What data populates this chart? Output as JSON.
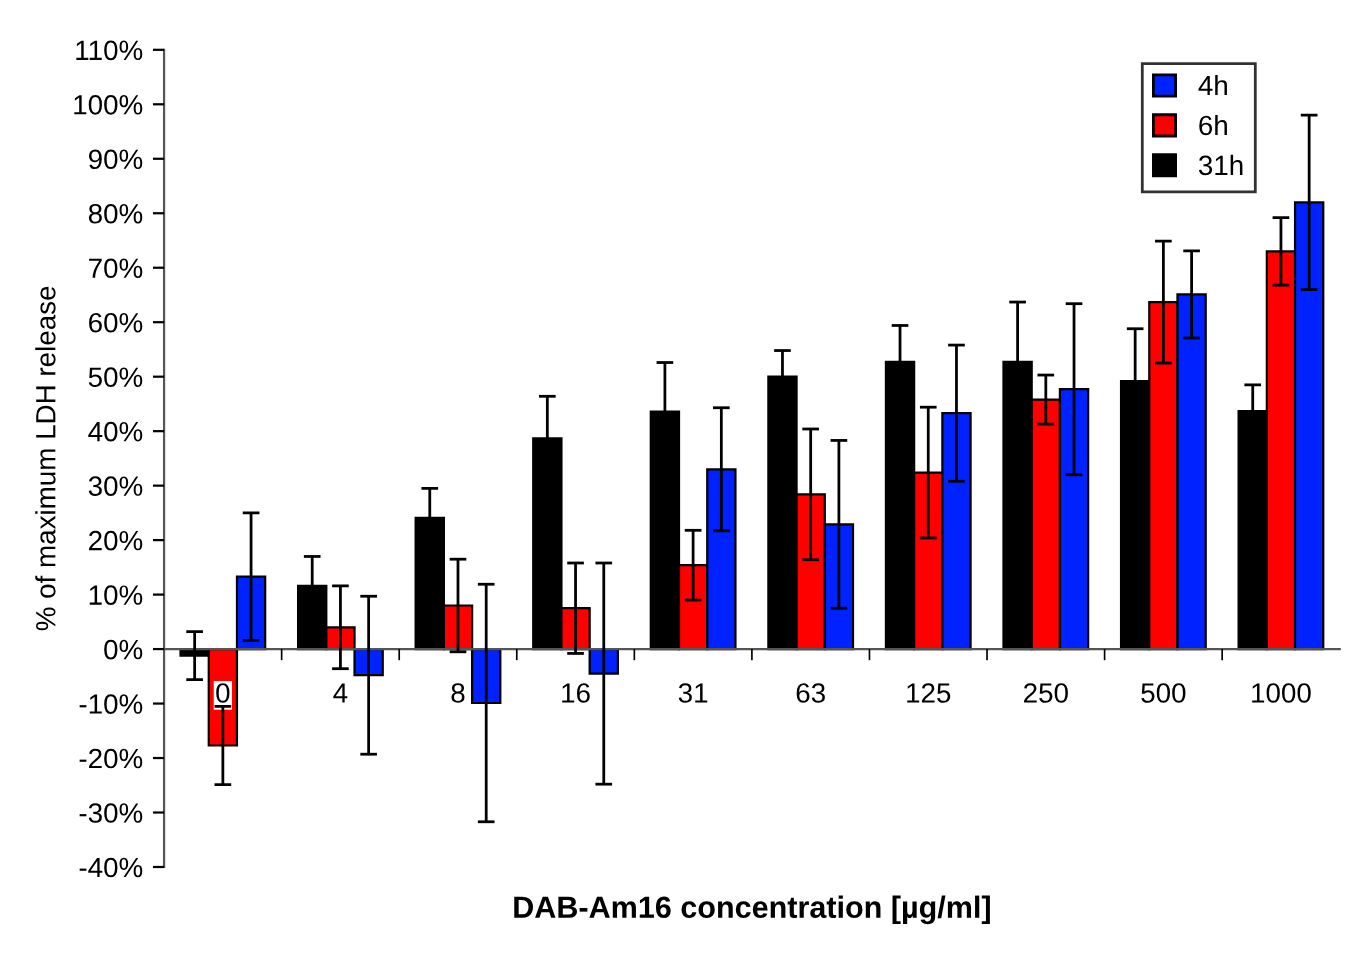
{
  "chart_data": {
    "type": "bar",
    "xlabel": "DAB-Am16 concentration [µg/ml]",
    "ylabel": "% of maximum LDH release",
    "categories": [
      "0",
      "4",
      "8",
      "16",
      "31",
      "63",
      "125",
      "250",
      "500",
      "1000"
    ],
    "series": [
      {
        "name": "31h",
        "color": "#000000",
        "values": [
          -1.2,
          11.6,
          24.1,
          38.7,
          43.6,
          50.0,
          52.7,
          52.7,
          49.2,
          43.7
        ],
        "errors": [
          4.4,
          5.4,
          5.4,
          7.7,
          9.0,
          4.8,
          6.7,
          11.0,
          9.6,
          4.8
        ]
      },
      {
        "name": "6h",
        "color": "#ff0000",
        "values": [
          -17.7,
          4.0,
          8.0,
          7.5,
          15.4,
          28.4,
          32.4,
          45.8,
          63.7,
          73.0
        ],
        "errors": [
          7.2,
          7.6,
          8.5,
          8.3,
          6.4,
          12.0,
          12.0,
          4.5,
          11.2,
          6.2
        ]
      },
      {
        "name": "4h",
        "color": "#0022ff",
        "values": [
          13.3,
          -4.8,
          -9.9,
          -4.5,
          33.0,
          22.9,
          43.3,
          47.7,
          65.1,
          82.0
        ],
        "errors": [
          11.7,
          14.5,
          21.8,
          20.3,
          11.3,
          15.4,
          12.5,
          15.7,
          8.0,
          16.0
        ]
      }
    ],
    "ylim": [
      -40,
      110
    ],
    "yticks": [
      {
        "value": -40,
        "label": "-40%"
      },
      {
        "value": -30,
        "label": "-30%"
      },
      {
        "value": -20,
        "label": "-20%"
      },
      {
        "value": -10,
        "label": "-10%"
      },
      {
        "value": 0,
        "label": "0%"
      },
      {
        "value": 10,
        "label": "10%"
      },
      {
        "value": 20,
        "label": "20%"
      },
      {
        "value": 30,
        "label": "30%"
      },
      {
        "value": 40,
        "label": "40%"
      },
      {
        "value": 50,
        "label": "50%"
      },
      {
        "value": 60,
        "label": "60%"
      },
      {
        "value": 70,
        "label": "70%"
      },
      {
        "value": 80,
        "label": "80%"
      },
      {
        "value": 90,
        "label": "90%"
      },
      {
        "value": 100,
        "label": "100%"
      },
      {
        "value": 110,
        "label": "110%"
      }
    ],
    "grid": false,
    "legend": "top right"
  }
}
